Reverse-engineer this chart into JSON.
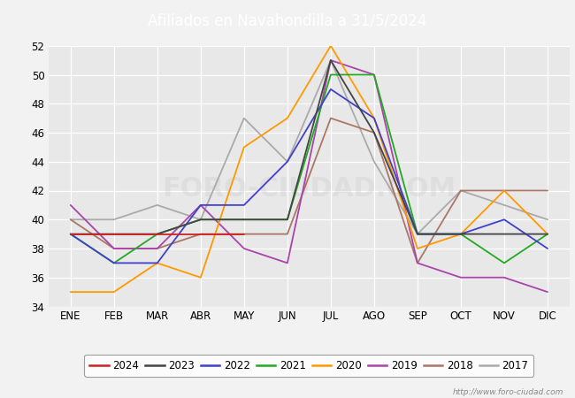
{
  "title": "Afiliados en Navahondilla a 31/5/2024",
  "header_bg": "#5b9bd5",
  "ylim": [
    34,
    52
  ],
  "yticks": [
    34,
    36,
    38,
    40,
    42,
    44,
    46,
    48,
    50,
    52
  ],
  "months": [
    "ENE",
    "FEB",
    "MAR",
    "ABR",
    "MAY",
    "JUN",
    "JUL",
    "AGO",
    "SEP",
    "OCT",
    "NOV",
    "DIC"
  ],
  "series": {
    "2024": {
      "color": "#cc2222",
      "data": [
        39,
        39,
        39,
        39,
        39,
        null,
        null,
        null,
        null,
        null,
        null,
        null
      ]
    },
    "2023": {
      "color": "#444444",
      "data": [
        39,
        39,
        39,
        40,
        40,
        40,
        51,
        46,
        39,
        39,
        39,
        39
      ]
    },
    "2022": {
      "color": "#4040cc",
      "data": [
        39,
        37,
        37,
        41,
        41,
        44,
        49,
        47,
        39,
        39,
        40,
        38
      ]
    },
    "2021": {
      "color": "#22aa22",
      "data": [
        39,
        37,
        39,
        40,
        40,
        40,
        50,
        50,
        39,
        39,
        37,
        39
      ]
    },
    "2020": {
      "color": "#ff9900",
      "data": [
        35,
        35,
        37,
        36,
        45,
        47,
        52,
        47,
        38,
        39,
        42,
        39
      ]
    },
    "2019": {
      "color": "#aa44aa",
      "data": [
        41,
        38,
        38,
        41,
        38,
        37,
        51,
        50,
        37,
        36,
        36,
        35
      ]
    },
    "2018": {
      "color": "#aa7766",
      "data": [
        40,
        38,
        38,
        39,
        39,
        39,
        47,
        46,
        37,
        42,
        42,
        42
      ]
    },
    "2017": {
      "color": "#aaaaaa",
      "data": [
        40,
        40,
        41,
        40,
        47,
        44,
        51,
        44,
        39,
        42,
        41,
        40
      ]
    }
  },
  "watermark": "http://www.foro-ciudad.com",
  "bg_color": "#f2f2f2",
  "plot_bg": "#e8e8e8",
  "grid_color": "#ffffff"
}
